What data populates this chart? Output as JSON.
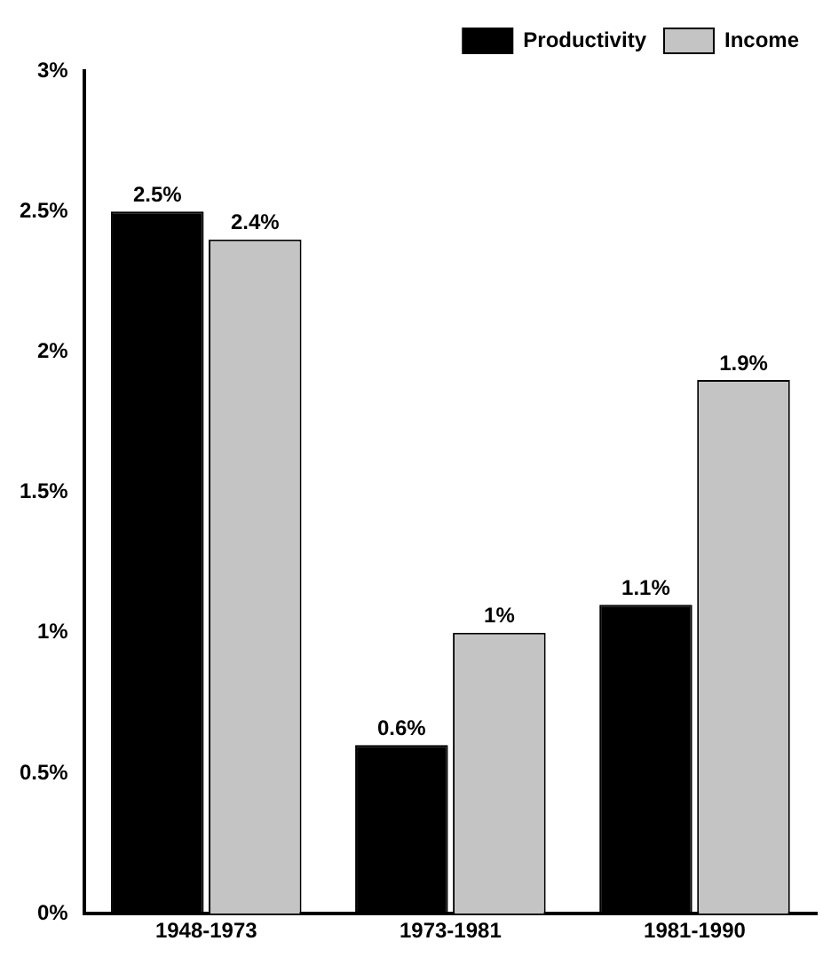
{
  "chart_data": {
    "type": "bar",
    "categories": [
      "1948-1973",
      "1973-1981",
      "1981-1990"
    ],
    "series": [
      {
        "name": "Productivity",
        "color": "#000000",
        "values": [
          2.5,
          0.6,
          1.1
        ],
        "value_labels": [
          "2.5%",
          "0.6%",
          "1.1%"
        ]
      },
      {
        "name": "Income",
        "color": "#c4c4c4",
        "values": [
          2.4,
          1,
          1.9
        ],
        "value_labels": [
          "2.4%",
          "1%",
          "1.9%"
        ]
      }
    ],
    "ylim": [
      0,
      3
    ],
    "yticks": [
      {
        "value": 0,
        "label": "0%"
      },
      {
        "value": 0.5,
        "label": "0.5%"
      },
      {
        "value": 1,
        "label": "1%"
      },
      {
        "value": 1.5,
        "label": "1.5%"
      },
      {
        "value": 2,
        "label": "2%"
      },
      {
        "value": 2.5,
        "label": "2.5%"
      },
      {
        "value": 3,
        "label": "3%"
      }
    ],
    "grid": false,
    "legend": "top right"
  }
}
